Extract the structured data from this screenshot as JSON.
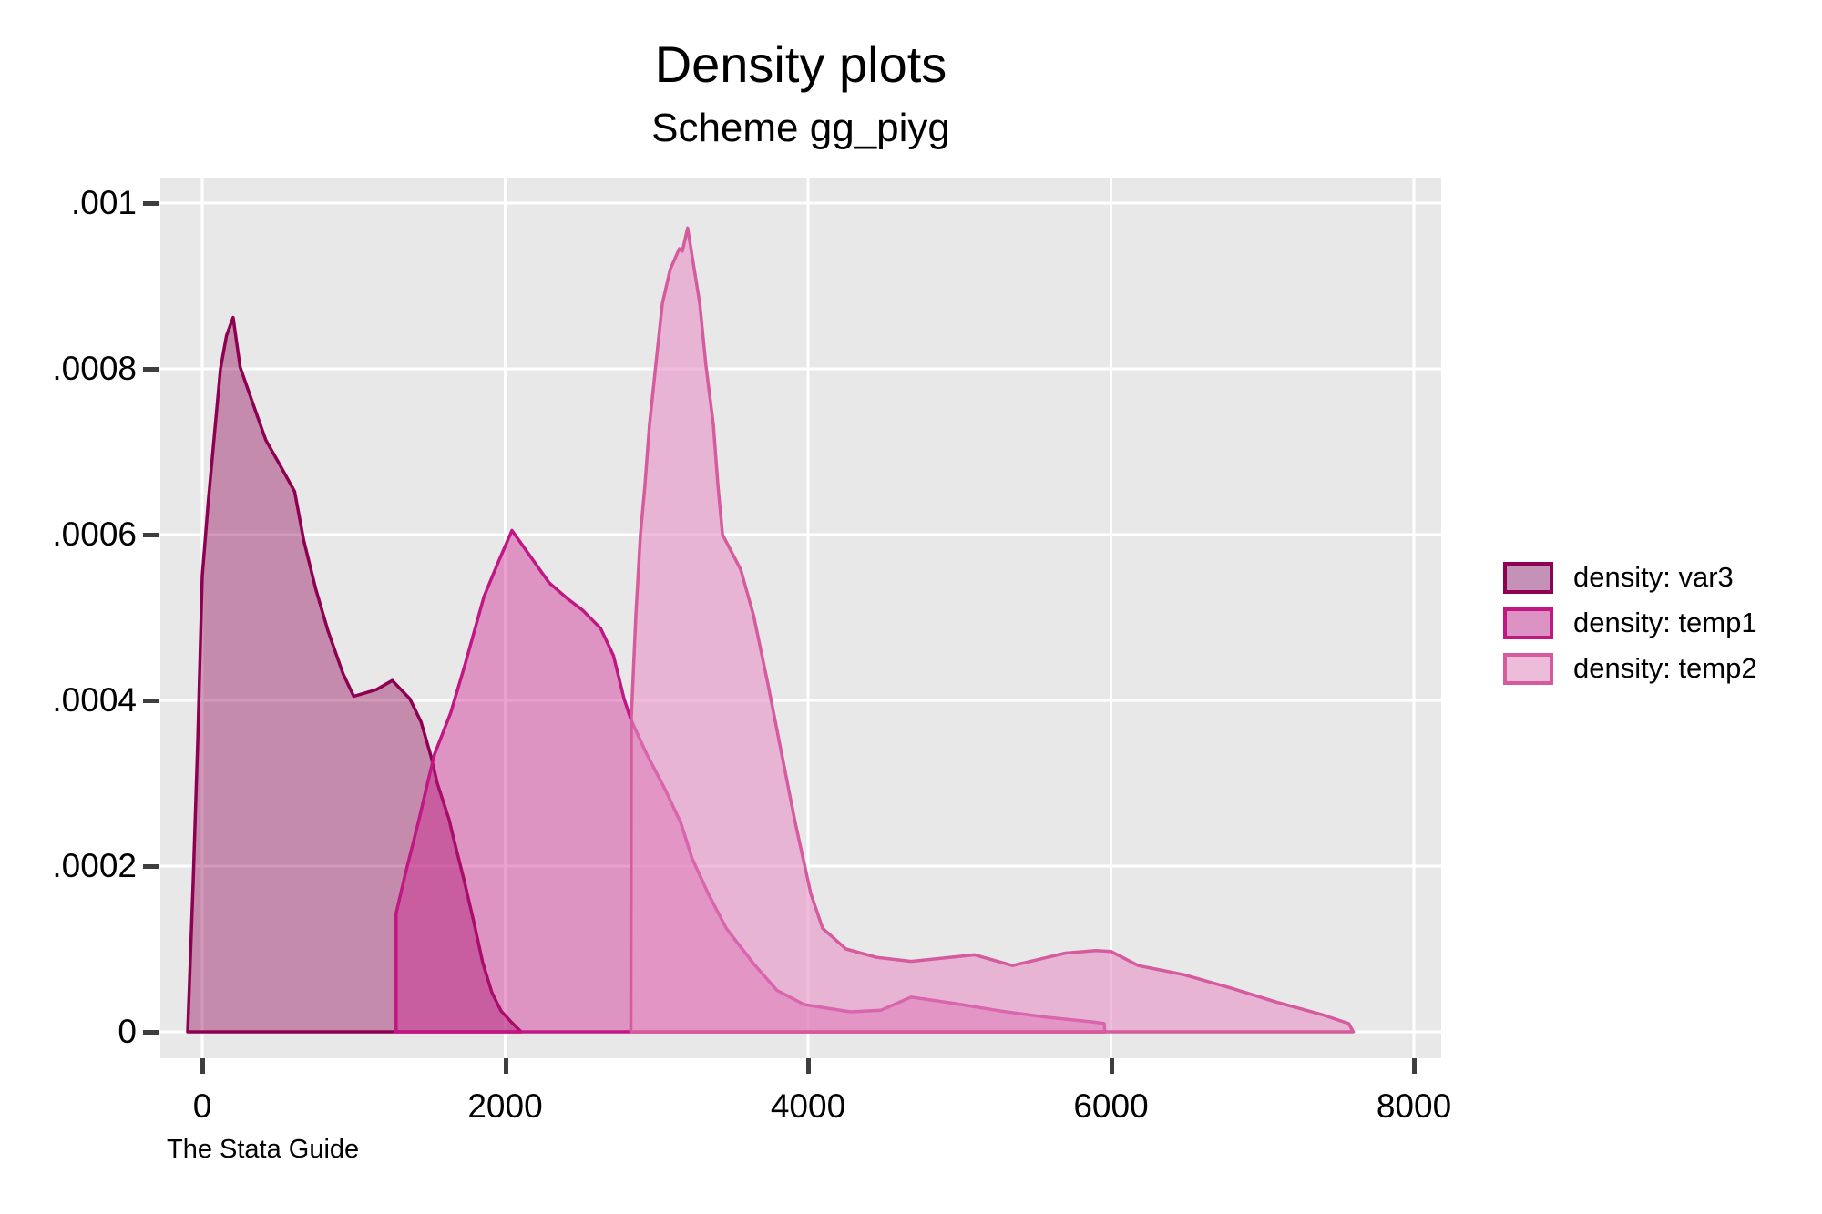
{
  "header": {
    "title": "Density plots",
    "subtitle": "Scheme gg_piyg",
    "caption": "The Stata Guide"
  },
  "colors": {
    "page_background": "#FFFFFF",
    "plot_background": "#E8E8E8",
    "gridline": "#FFFFFF",
    "tick_mark": "#3E3E3E",
    "text": "#000000",
    "var3_line": "#8E0152",
    "var3_fill": "rgba(142,1,82,0.40)",
    "temp1_line": "#C11784",
    "temp1_fill": "rgba(205,30,140,0.42)",
    "temp2_line": "#D55A9E",
    "temp2_fill": "rgba(231,150,199,0.62)"
  },
  "legend": {
    "items": [
      {
        "label": "density: var3",
        "key_border": "#8E0152",
        "key_fill": "#C492B7"
      },
      {
        "label": "density: temp1",
        "key_border": "#C11784",
        "key_fill": "#DC92C3"
      },
      {
        "label": "density: temp2",
        "key_border": "#D55A9E",
        "key_fill": "#EDBCDB"
      }
    ]
  },
  "chart_data": {
    "type": "area",
    "title": "Density plots",
    "subtitle": "Scheme gg_piyg",
    "xlabel": "",
    "ylabel": "",
    "xlim": [
      -277,
      8180
    ],
    "ylim": [
      -3.2e-05,
      0.00103
    ],
    "grid": true,
    "legend_position": "right-outside",
    "x_ticks": [
      {
        "v": 0,
        "label": "0"
      },
      {
        "v": 2000,
        "label": "2000"
      },
      {
        "v": 4000,
        "label": "4000"
      },
      {
        "v": 6000,
        "label": "6000"
      },
      {
        "v": 8000,
        "label": "8000"
      }
    ],
    "y_ticks": [
      {
        "v": 0,
        "label": "0"
      },
      {
        "v": 0.0002,
        "label": ".0002"
      },
      {
        "v": 0.0004,
        "label": ".0004"
      },
      {
        "v": 0.0006,
        "label": ".0006"
      },
      {
        "v": 0.0008,
        "label": ".0008"
      },
      {
        "v": 0.001,
        "label": ".001"
      }
    ],
    "series": [
      {
        "name": "density: var3",
        "line_color": "#8E0152",
        "fill_color": "rgba(142,1,82,0.40)",
        "points": [
          [
            -96,
            0
          ],
          [
            -60,
            0.00018
          ],
          [
            -30,
            0.00035
          ],
          [
            0,
            0.00055
          ],
          [
            40,
            0.00064
          ],
          [
            80,
            0.00072
          ],
          [
            120,
            0.0008
          ],
          [
            160,
            0.00084
          ],
          [
            204,
            0.000862
          ],
          [
            250,
            0.000802
          ],
          [
            350,
            0.00075
          ],
          [
            420,
            0.000714
          ],
          [
            510,
            0.000685
          ],
          [
            610,
            0.000652
          ],
          [
            670,
            0.000593
          ],
          [
            750,
            0.000534
          ],
          [
            830,
            0.000484
          ],
          [
            930,
            0.000432
          ],
          [
            1000,
            0.000405
          ],
          [
            1150,
            0.000413
          ],
          [
            1255,
            0.000424
          ],
          [
            1370,
            0.000402
          ],
          [
            1445,
            0.000374
          ],
          [
            1510,
            0.000333
          ],
          [
            1552,
            0.0003
          ],
          [
            1630,
            0.000256
          ],
          [
            1655,
            0.000237
          ],
          [
            1730,
            0.000182
          ],
          [
            1790,
            0.000135
          ],
          [
            1852,
            8.35e-05
          ],
          [
            1913,
            4.73e-05
          ],
          [
            1973,
            2.53e-05
          ],
          [
            2045,
            1.1e-05
          ],
          [
            2105,
            0
          ]
        ]
      },
      {
        "name": "density: temp1",
        "line_color": "#C11784",
        "fill_color": "rgba(205,30,140,0.42)",
        "points": [
          [
            1280,
            0
          ],
          [
            1280,
            0.000143
          ],
          [
            1340,
            0.00019
          ],
          [
            1431,
            0.000256
          ],
          [
            1490,
            0.000302
          ],
          [
            1534,
            0.000335
          ],
          [
            1640,
            0.000385
          ],
          [
            1730,
            0.00044
          ],
          [
            1860,
            0.000525
          ],
          [
            1950,
            0.000565
          ],
          [
            2045,
            0.000605
          ],
          [
            2150,
            0.000578
          ],
          [
            2290,
            0.000542
          ],
          [
            2410,
            0.000523
          ],
          [
            2510,
            0.000509
          ],
          [
            2630,
            0.000487
          ],
          [
            2715,
            0.000454
          ],
          [
            2785,
            0.000402
          ],
          [
            2830,
            0.000377
          ],
          [
            2935,
            0.000335
          ],
          [
            3055,
            0.000293
          ],
          [
            3160,
            0.000252
          ],
          [
            3235,
            0.000209
          ],
          [
            3340,
            0.000167
          ],
          [
            3460,
            0.000125
          ],
          [
            3640,
            8.24e-05
          ],
          [
            3795,
            5e-05
          ],
          [
            3975,
            3.3e-05
          ],
          [
            4280,
            2.42e-05
          ],
          [
            4480,
            2.6e-05
          ],
          [
            4680,
            4.2e-05
          ],
          [
            4980,
            3.4e-05
          ],
          [
            5280,
            2.5e-05
          ],
          [
            5580,
            1.76e-05
          ],
          [
            5880,
            1.2e-05
          ],
          [
            5955,
            1e-05
          ],
          [
            5960,
            0
          ]
        ]
      },
      {
        "name": "density: temp2",
        "line_color": "#D55A9E",
        "fill_color": "rgba(231,150,199,0.62)",
        "points": [
          [
            2830,
            0
          ],
          [
            2833,
            0.00038
          ],
          [
            2863,
            0.000503
          ],
          [
            2893,
            0.0006
          ],
          [
            2923,
            0.000659
          ],
          [
            2953,
            0.000732
          ],
          [
            2995,
            0.000805
          ],
          [
            3038,
            0.000879
          ],
          [
            3090,
            0.00092
          ],
          [
            3150,
            0.000945
          ],
          [
            3170,
            0.000942
          ],
          [
            3205,
            0.00097
          ],
          [
            3285,
            0.000879
          ],
          [
            3325,
            0.000805
          ],
          [
            3375,
            0.000732
          ],
          [
            3405,
            0.000659
          ],
          [
            3435,
            0.0006
          ],
          [
            3555,
            0.000558
          ],
          [
            3640,
            0.000503
          ],
          [
            3735,
            0.00042
          ],
          [
            3826,
            0.000335
          ],
          [
            3916,
            0.000252
          ],
          [
            4018,
            0.000167
          ],
          [
            4096,
            0.000125
          ],
          [
            4250,
            0.0001
          ],
          [
            4450,
            9e-05
          ],
          [
            4680,
            8.5e-05
          ],
          [
            5100,
            9.3e-05
          ],
          [
            5350,
            8e-05
          ],
          [
            5700,
            9.5e-05
          ],
          [
            5900,
            9.8e-05
          ],
          [
            6000,
            9.7e-05
          ],
          [
            6180,
            8e-05
          ],
          [
            6480,
            6.9e-05
          ],
          [
            6790,
            5.3e-05
          ],
          [
            7090,
            3.6e-05
          ],
          [
            7390,
            2.1e-05
          ],
          [
            7570,
            1e-05
          ],
          [
            7600,
            0
          ]
        ]
      }
    ]
  }
}
